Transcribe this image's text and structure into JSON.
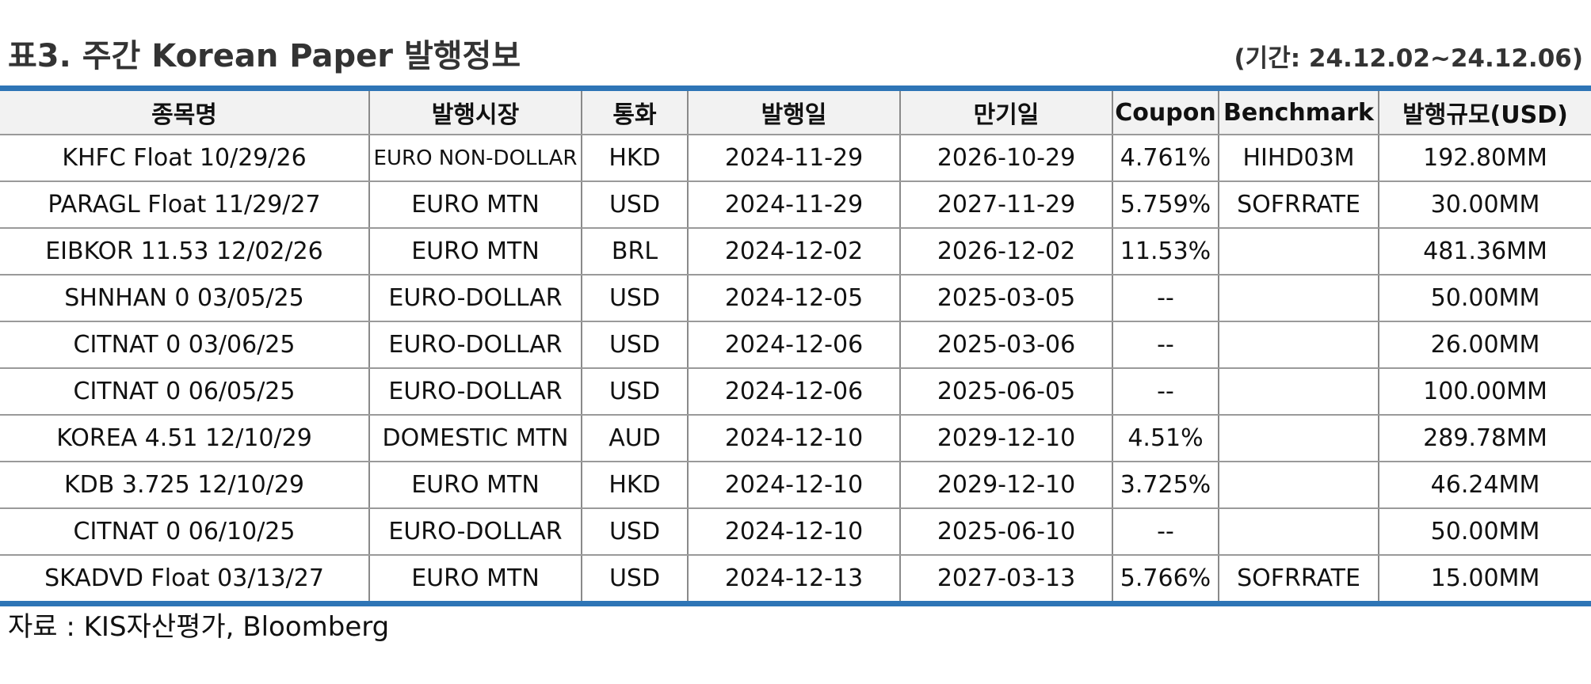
{
  "header": {
    "title": "표3. 주간 Korean Paper 발행정보",
    "period": "(기간: 24.12.02~24.12.06)"
  },
  "table": {
    "columns": [
      "종목명",
      "발행시장",
      "통화",
      "발행일",
      "만기일",
      "Coupon",
      "Benchmark",
      "발행규모(USD)"
    ],
    "rows": [
      [
        "KHFC Float 10/29/26",
        "EURO NON-DOLLAR",
        "HKD",
        "2024-11-29",
        "2026-10-29",
        "4.761%",
        "HIHD03M",
        "192.80MM"
      ],
      [
        "PARAGL Float 11/29/27",
        "EURO MTN",
        "USD",
        "2024-11-29",
        "2027-11-29",
        "5.759%",
        "SOFRRATE",
        "30.00MM"
      ],
      [
        "EIBKOR 11.53 12/02/26",
        "EURO MTN",
        "BRL",
        "2024-12-02",
        "2026-12-02",
        "11.53%",
        "",
        "481.36MM"
      ],
      [
        "SHNHAN 0 03/05/25",
        "EURO-DOLLAR",
        "USD",
        "2024-12-05",
        "2025-03-05",
        "--",
        "",
        "50.00MM"
      ],
      [
        "CITNAT 0 03/06/25",
        "EURO-DOLLAR",
        "USD",
        "2024-12-06",
        "2025-03-06",
        "--",
        "",
        "26.00MM"
      ],
      [
        "CITNAT 0 06/05/25",
        "EURO-DOLLAR",
        "USD",
        "2024-12-06",
        "2025-06-05",
        "--",
        "",
        "100.00MM"
      ],
      [
        "KOREA 4.51 12/10/29",
        "DOMESTIC MTN",
        "AUD",
        "2024-12-10",
        "2029-12-10",
        "4.51%",
        "",
        "289.78MM"
      ],
      [
        "KDB 3.725 12/10/29",
        "EURO MTN",
        "HKD",
        "2024-12-10",
        "2029-12-10",
        "3.725%",
        "",
        "46.24MM"
      ],
      [
        "CITNAT 0 06/10/25",
        "EURO-DOLLAR",
        "USD",
        "2024-12-10",
        "2025-06-10",
        "--",
        "",
        "50.00MM"
      ],
      [
        "SKADVD Float 03/13/27",
        "EURO MTN",
        "USD",
        "2024-12-13",
        "2027-03-13",
        "5.766%",
        "SOFRRATE",
        "15.00MM"
      ]
    ]
  },
  "footer": {
    "source": "자료 : KIS자산평가, Bloomberg"
  },
  "colors": {
    "rule": "#2e75b6",
    "header_bg": "#f2f2f2"
  }
}
